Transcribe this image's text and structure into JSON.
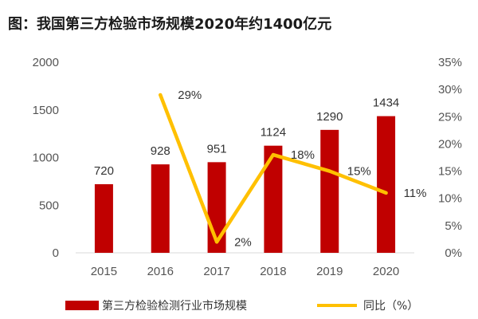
{
  "title": "图：我国第三方检验市场规模2020年约1400亿元",
  "chart_data": {
    "type": "bar",
    "categories": [
      "2015",
      "2016",
      "2017",
      "2018",
      "2019",
      "2020"
    ],
    "series": [
      {
        "name": "第三方检验检测行业市场规模",
        "type": "bar",
        "axis": "left",
        "color": "#c00000",
        "values": [
          720,
          928,
          951,
          1124,
          1290,
          1434
        ],
        "labels": [
          "720",
          "928",
          "951",
          "1124",
          "1290",
          "1434"
        ]
      },
      {
        "name": "同比（%）",
        "type": "line",
        "axis": "right",
        "color": "#ffc000",
        "values": [
          29,
          2,
          18,
          15,
          11
        ],
        "x": [
          "2016",
          "2017",
          "2018",
          "2019",
          "2020"
        ],
        "labels": [
          "29%",
          "2%",
          "18%",
          "15%",
          "11%"
        ]
      }
    ],
    "y_left": {
      "ylim": [
        0,
        2000
      ],
      "ticks": [
        "0",
        "500",
        "1000",
        "1500",
        "2000"
      ]
    },
    "y_right": {
      "ylim": [
        0,
        35
      ],
      "ticks": [
        "0%",
        "5%",
        "10%",
        "15%",
        "20%",
        "25%",
        "30%",
        "35%"
      ]
    },
    "grid": false,
    "legend_position": "bottom"
  }
}
